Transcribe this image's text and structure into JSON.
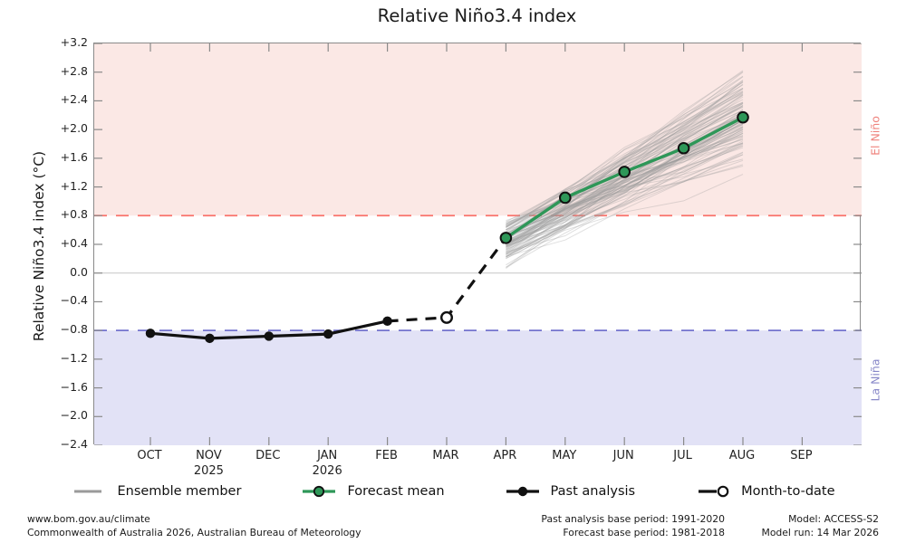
{
  "chart_data": {
    "type": "line",
    "title": "Relative Niño3.4 index",
    "ylabel": "Relative Niño3.4 index (°C)",
    "ylim": [
      -2.4,
      3.2
    ],
    "ytick_labels": [
      "+3.2",
      "+2.8",
      "+2.4",
      "+2.0",
      "+1.6",
      "+1.2",
      "+0.8",
      "+0.4",
      "0.0",
      "−0.4",
      "−0.8",
      "−1.2",
      "−1.6",
      "−2.0",
      "−2.4"
    ],
    "x_categories": [
      "OCT",
      "NOV",
      "DEC",
      "JAN",
      "FEB",
      "MAR",
      "APR",
      "MAY",
      "JUN",
      "JUL",
      "AUG",
      "SEP"
    ],
    "x_years": {
      "1": "2025",
      "3": "2026"
    },
    "grid": "zero-line-only",
    "thresholds": {
      "el_nino": 0.8,
      "la_nina": -0.8,
      "zero": 0.0
    },
    "region_labels": {
      "upper": "El Niño",
      "lower": "La Niña"
    },
    "series": [
      {
        "name": "Past analysis",
        "type": "line",
        "marker": "filled-circle",
        "color": "#111111",
        "x": [
          "OCT",
          "NOV",
          "DEC",
          "JAN",
          "FEB"
        ],
        "values": [
          -0.84,
          -0.91,
          -0.88,
          -0.85,
          -0.67
        ]
      },
      {
        "name": "Month-to-date",
        "type": "point",
        "marker": "open-circle",
        "color": "#111111",
        "connector": "dashed",
        "x": [
          "MAR"
        ],
        "values": [
          -0.62
        ]
      },
      {
        "name": "Forecast mean",
        "type": "line",
        "marker": "filled-circle",
        "color": "#2e9758",
        "x": [
          "APR",
          "MAY",
          "JUN",
          "JUL",
          "AUG"
        ],
        "values": [
          0.49,
          1.05,
          1.41,
          1.74,
          2.17
        ]
      },
      {
        "name": "Ensemble member",
        "type": "ensemble",
        "color": "#9a9a9a",
        "count": 99,
        "x": [
          "APR",
          "MAY",
          "JUN",
          "JUL",
          "AUG"
        ],
        "start_range": [
          0.05,
          0.8
        ],
        "end_range": [
          1.35,
          2.95
        ]
      }
    ],
    "legend": {
      "position": "bottom-center",
      "items": [
        {
          "label": "Ensemble member",
          "swatch": "ensemble"
        },
        {
          "label": "Forecast mean",
          "swatch": "forecast"
        },
        {
          "label": "Past analysis",
          "swatch": "past"
        },
        {
          "label": "Month-to-date",
          "swatch": "mtd"
        }
      ]
    }
  },
  "colors": {
    "el_nino_region": "#fbe8e5",
    "la_nina_region": "#e2e2f6",
    "el_nino_line": "#f9726b",
    "la_nina_line": "#7474ce",
    "el_nino_text": "#ef837d",
    "la_nina_text": "#8787c8",
    "zero_line": "#cdcdcd",
    "frame": "#8a8a8a",
    "forecast_green": "#2e9758",
    "past_black": "#111111",
    "ensemble_gray": "#9a9a9a"
  },
  "footer": {
    "left_line1": "www.bom.gov.au/climate",
    "left_line2": "Commonwealth of Australia 2026, Australian Bureau of Meteorology",
    "center_line1": "Past analysis base period: 1991-2020",
    "center_line2": "Forecast base period: 1981-2018",
    "right_line1": "Model: ACCESS-S2",
    "right_line2": "Model run: 14 Mar 2026"
  }
}
